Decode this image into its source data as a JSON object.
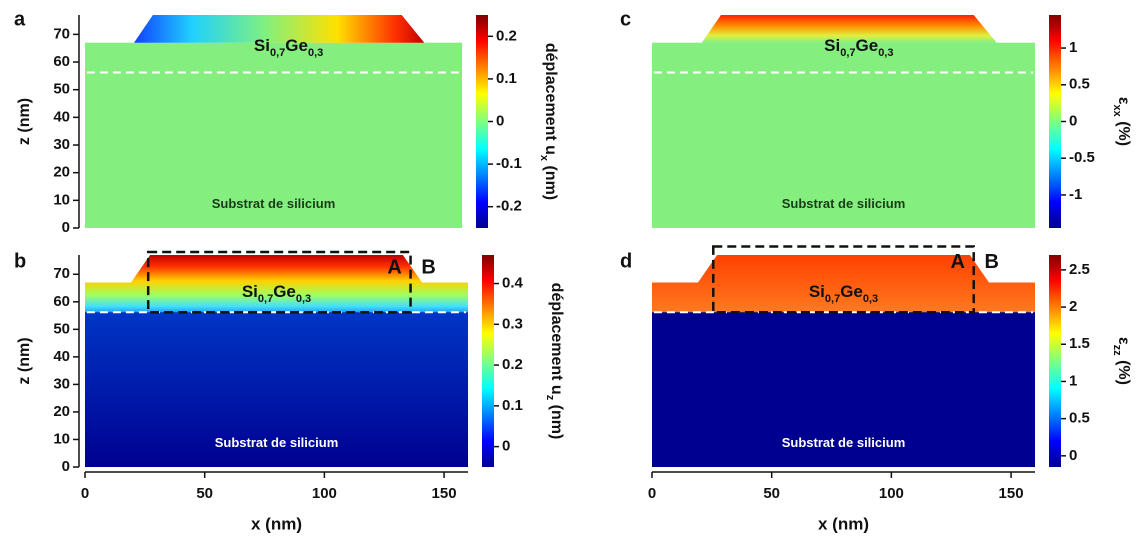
{
  "chart_data": [
    {
      "type": "heatmap",
      "panel": "a",
      "material": [
        "Si",
        "0,7",
        "Ge",
        "0,3"
      ],
      "substrate": "Substrat de silicium",
      "ylabel": "z (nm)",
      "ylim": [
        0,
        77
      ],
      "yticks": [
        0,
        10,
        20,
        30,
        40,
        50,
        60,
        70
      ],
      "xlim": [
        0,
        160
      ],
      "colorbar_label": [
        "déplacement u",
        "x",
        " (nm)"
      ],
      "clim": [
        -0.25,
        0.25
      ],
      "cticks": [
        -0.2,
        -0.1,
        0,
        0.1,
        0.2
      ]
    },
    {
      "type": "heatmap",
      "panel": "b",
      "material": [
        "Si",
        "0,7",
        "Ge",
        "0,3"
      ],
      "substrate": "Substrat de silicium",
      "ylabel": "z (nm)",
      "ylim": [
        0,
        77
      ],
      "yticks": [
        0,
        10,
        20,
        30,
        40,
        50,
        60,
        70
      ],
      "xlabel": "x (nm)",
      "xlim": [
        0,
        160
      ],
      "xticks": [
        0,
        50,
        100,
        150
      ],
      "box_labels": [
        "A",
        "B"
      ],
      "colorbar_label": [
        "déplacement u",
        "z",
        " (nm)"
      ],
      "clim": [
        -0.05,
        0.47
      ],
      "cticks": [
        0,
        0.1,
        0.2,
        0.3,
        0.4
      ]
    },
    {
      "type": "heatmap",
      "panel": "c",
      "material": [
        "Si",
        "0,7",
        "Ge",
        "0,3"
      ],
      "substrate": "Substrat de silicium",
      "colorbar_label": [
        "ε",
        "xx",
        " (%)"
      ],
      "clim": [
        -1.45,
        1.45
      ],
      "cticks": [
        -1,
        -0.5,
        0,
        0.5,
        1
      ]
    },
    {
      "type": "heatmap",
      "panel": "d",
      "material": [
        "Si",
        "0,7",
        "Ge",
        "0,3"
      ],
      "substrate": "Substrat de silicium",
      "xlabel": "x (nm)",
      "xlim": [
        0,
        160
      ],
      "xticks": [
        0,
        50,
        100,
        150
      ],
      "box_labels": [
        "A",
        "B"
      ],
      "colorbar_label": [
        "ε",
        "zz",
        " (%)"
      ],
      "clim": [
        -0.15,
        2.7
      ],
      "cticks": [
        0,
        0.5,
        1,
        1.5,
        2,
        2.5
      ]
    }
  ]
}
